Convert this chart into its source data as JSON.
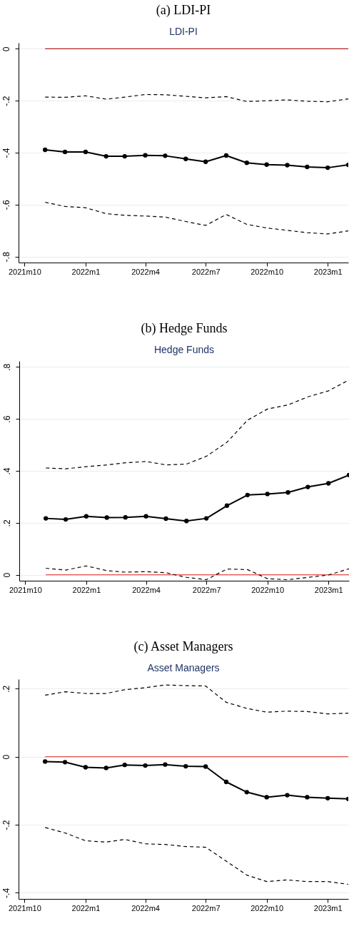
{
  "chart_data": [
    {
      "type": "line",
      "title": "(a) LDI-PI",
      "subtitle": "LDI-PI",
      "grid": "y",
      "x": [
        "2021-11",
        "2021-12",
        "2022-01",
        "2022-02",
        "2022-03",
        "2022-04",
        "2022-05",
        "2022-06",
        "2022-07",
        "2022-08",
        "2022-09",
        "2022-10",
        "2022-11",
        "2022-12",
        "2023-01",
        "2023-02"
      ],
      "xlim": [
        "2021-09-22",
        "2023-02"
      ],
      "xticks": [
        {
          "value": "2021-10",
          "label": "2021m10"
        },
        {
          "value": "2022-01",
          "label": "2022m1"
        },
        {
          "value": "2022-04",
          "label": "2022m4"
        },
        {
          "value": "2022-07",
          "label": "2022m7"
        },
        {
          "value": "2022-10",
          "label": "2022m10"
        },
        {
          "value": "2023-01",
          "label": "2023m1"
        }
      ],
      "ylim": [
        -0.823,
        0.023
      ],
      "yticks": [
        {
          "value": -0.8,
          "label": "-.8"
        },
        {
          "value": -0.6,
          "label": "-.6"
        },
        {
          "value": -0.4,
          "label": "-.4"
        },
        {
          "value": -0.2,
          "label": "-.2"
        },
        {
          "value": 0,
          "label": "0"
        }
      ],
      "ref_lines": [
        {
          "axis": "y",
          "value": 0,
          "color": "#b22222"
        }
      ],
      "series": [
        {
          "color": "#000000",
          "marker": "circle",
          "line_style": "solid",
          "values": [
            -0.389,
            -0.397,
            -0.397,
            -0.414,
            -0.414,
            -0.41,
            -0.412,
            -0.424,
            -0.435,
            -0.411,
            -0.439,
            -0.446,
            -0.448,
            -0.455,
            -0.458,
            -0.447
          ]
        },
        {
          "color": "#000000",
          "line_style": "dashed",
          "values": [
            -0.186,
            -0.187,
            -0.181,
            -0.194,
            -0.186,
            -0.176,
            -0.177,
            -0.183,
            -0.189,
            -0.184,
            -0.203,
            -0.2,
            -0.197,
            -0.202,
            -0.204,
            -0.193
          ]
        },
        {
          "color": "#000000",
          "line_style": "dashed",
          "values": [
            -0.591,
            -0.607,
            -0.612,
            -0.635,
            -0.641,
            -0.644,
            -0.648,
            -0.665,
            -0.68,
            -0.638,
            -0.676,
            -0.69,
            -0.699,
            -0.708,
            -0.713,
            -0.701
          ]
        }
      ]
    },
    {
      "type": "line",
      "title": "(b) Hedge Funds",
      "subtitle": "Hedge Funds",
      "grid": "y",
      "x": [
        "2021-11",
        "2021-12",
        "2022-01",
        "2022-02",
        "2022-03",
        "2022-04",
        "2022-05",
        "2022-06",
        "2022-07",
        "2022-08",
        "2022-09",
        "2022-10",
        "2022-11",
        "2022-12",
        "2023-01",
        "2023-02"
      ],
      "xlim": [
        "2021-09-22",
        "2023-02"
      ],
      "xticks": [
        {
          "value": "2021-10",
          "label": "2021m10"
        },
        {
          "value": "2022-01",
          "label": "2022m1"
        },
        {
          "value": "2022-04",
          "label": "2022m4"
        },
        {
          "value": "2022-07",
          "label": "2022m7"
        },
        {
          "value": "2022-10",
          "label": "2022m10"
        },
        {
          "value": "2023-01",
          "label": "2023m1"
        }
      ],
      "ylim": [
        -0.023,
        0.823
      ],
      "yticks": [
        {
          "value": 0,
          "label": "0"
        },
        {
          "value": 0.2,
          "label": ".2"
        },
        {
          "value": 0.4,
          "label": ".4"
        },
        {
          "value": 0.6,
          "label": ".6"
        },
        {
          "value": 0.8,
          "label": ".8"
        }
      ],
      "ref_lines": [
        {
          "axis": "y",
          "value": 0,
          "color": "#e8504a"
        }
      ],
      "series": [
        {
          "color": "#000000",
          "marker": "circle",
          "line_style": "solid",
          "values": [
            0.217,
            0.213,
            0.225,
            0.22,
            0.221,
            0.225,
            0.216,
            0.207,
            0.217,
            0.266,
            0.307,
            0.311,
            0.317,
            0.338,
            0.352,
            0.384
          ]
        },
        {
          "color": "#000000",
          "line_style": "dashed",
          "values": [
            0.411,
            0.408,
            0.416,
            0.423,
            0.431,
            0.436,
            0.423,
            0.426,
            0.456,
            0.51,
            0.595,
            0.638,
            0.654,
            0.685,
            0.708,
            0.75
          ]
        },
        {
          "color": "#000000",
          "line_style": "dashed",
          "values": [
            0.025,
            0.018,
            0.034,
            0.016,
            0.01,
            0.012,
            0.008,
            -0.01,
            -0.019,
            0.022,
            0.02,
            -0.015,
            -0.019,
            -0.01,
            -0.001,
            0.023
          ]
        }
      ]
    },
    {
      "type": "line",
      "title": "(c) Asset Managers",
      "subtitle": "Asset Managers",
      "grid": "y",
      "x": [
        "2021-11",
        "2021-12",
        "2022-01",
        "2022-02",
        "2022-03",
        "2022-04",
        "2022-05",
        "2022-06",
        "2022-07",
        "2022-08",
        "2022-09",
        "2022-10",
        "2022-11",
        "2022-12",
        "2023-01",
        "2023-02"
      ],
      "xlim": [
        "2021-09-22",
        "2023-02"
      ],
      "xticks": [
        {
          "value": "2021-10",
          "label": "2021m10"
        },
        {
          "value": "2022-01",
          "label": "2022m1"
        },
        {
          "value": "2022-04",
          "label": "2022m4"
        },
        {
          "value": "2022-07",
          "label": "2022m7"
        },
        {
          "value": "2022-10",
          "label": "2022m10"
        },
        {
          "value": "2023-01",
          "label": "2023m1"
        }
      ],
      "ylim": [
        -0.418,
        0.228
      ],
      "yticks": [
        {
          "value": -0.4,
          "label": "-.4"
        },
        {
          "value": -0.2,
          "label": "-.2"
        },
        {
          "value": 0,
          "label": "0"
        },
        {
          "value": 0.2,
          "label": ".2"
        }
      ],
      "ref_lines": [
        {
          "axis": "y",
          "value": 0,
          "color": "#e8504a"
        }
      ],
      "series": [
        {
          "color": "#000000",
          "marker": "circle",
          "line_style": "solid",
          "values": [
            -0.014,
            -0.016,
            -0.031,
            -0.033,
            -0.024,
            -0.026,
            -0.023,
            -0.028,
            -0.029,
            -0.074,
            -0.104,
            -0.119,
            -0.113,
            -0.119,
            -0.122,
            -0.124
          ]
        },
        {
          "color": "#000000",
          "line_style": "dashed",
          "values": [
            0.181,
            0.191,
            0.186,
            0.186,
            0.197,
            0.203,
            0.211,
            0.209,
            0.208,
            0.16,
            0.142,
            0.131,
            0.134,
            0.133,
            0.126,
            0.128
          ]
        },
        {
          "color": "#000000",
          "line_style": "dashed",
          "values": [
            -0.208,
            -0.224,
            -0.247,
            -0.251,
            -0.243,
            -0.256,
            -0.258,
            -0.264,
            -0.266,
            -0.307,
            -0.348,
            -0.367,
            -0.362,
            -0.367,
            -0.367,
            -0.375
          ]
        }
      ]
    }
  ]
}
